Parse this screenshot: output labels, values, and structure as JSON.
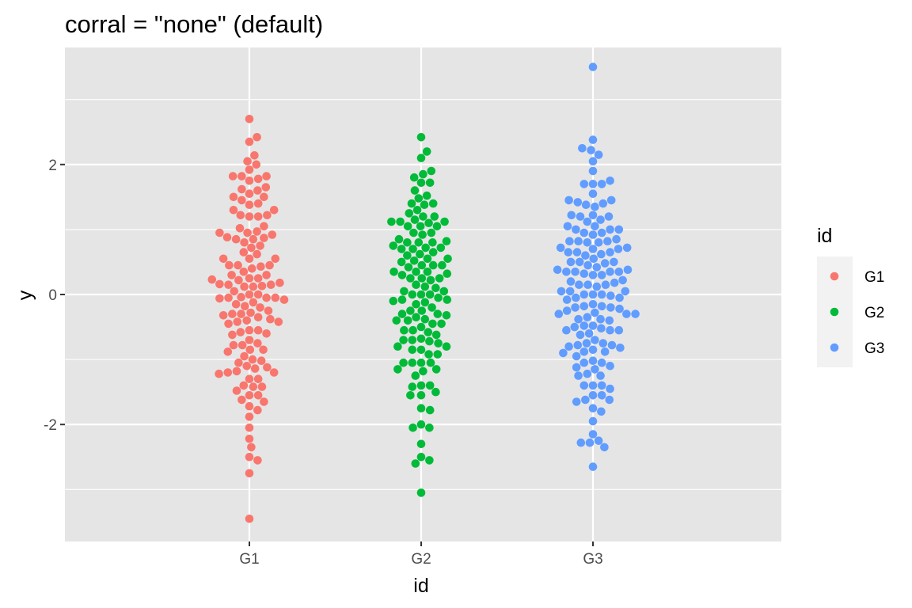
{
  "chart_data": {
    "type": "scatter",
    "subtype": "beeswarm",
    "title": "corral = \"none\" (default)",
    "xlabel": "id",
    "ylabel": "y",
    "categories": [
      "G1",
      "G2",
      "G3"
    ],
    "ylim": [
      -3.8,
      3.8
    ],
    "y_ticks": [
      -2,
      0,
      2
    ],
    "y_tick_labels": [
      "-2",
      "0",
      "2"
    ],
    "grid": true,
    "panel_background": "#e5e5e5",
    "legend": {
      "title": "id",
      "position": "right",
      "entries": [
        "G1",
        "G2",
        "G3"
      ]
    },
    "colors": {
      "G1": "#f8766d",
      "G2": "#00ba38",
      "G3": "#619cff"
    },
    "series": [
      {
        "name": "G1",
        "values": [
          0.0,
          0.22,
          0.23,
          0.16,
          0.13,
          0.12,
          -0.05,
          -0.06,
          -0.04,
          -0.08,
          -0.15,
          -0.28,
          -0.4,
          0.05,
          0.97,
          0.92,
          0.87,
          0.45,
          0.43,
          0.3,
          -0.3,
          -0.35,
          -0.42,
          -0.78,
          -1.12,
          -1.14,
          1.22,
          1.5,
          1.4,
          0.95,
          0.72,
          0.55,
          0.35,
          0.18,
          -0.2,
          -0.45,
          -0.62,
          -0.85,
          -1.05,
          -1.22,
          -1.4,
          -1.62,
          1.82,
          1.78,
          1.62,
          1.45,
          1.22,
          0.88,
          0.62,
          0.4,
          0.15,
          -0.12,
          -0.32,
          -0.55,
          -0.78,
          -1.0,
          -1.2,
          -1.42,
          -1.72,
          2.14,
          1.92,
          1.65,
          1.38,
          1.02,
          0.75,
          0.45,
          0.12,
          -0.25,
          -0.6,
          -0.95,
          -1.3,
          -1.55,
          -1.78,
          -2.22,
          2.7,
          2.35,
          2.05,
          1.55,
          1.2,
          0.85,
          0.45,
          0.15,
          -0.18,
          -0.55,
          -0.85,
          -1.2,
          -1.55,
          -1.88,
          -2.05,
          -2.35,
          -2.55,
          -2.75,
          -3.45,
          2.42,
          2.0,
          1.75,
          1.3,
          0.95,
          0.65,
          0.25,
          -0.05,
          -0.42,
          -0.75,
          -1.1,
          -1.42,
          -1.65,
          -2.5,
          1.82,
          1.6,
          1.3,
          1.05,
          0.8,
          0.55,
          0.3,
          0.0,
          -0.3,
          -0.58,
          -0.88,
          -1.18,
          -1.48,
          1.82,
          1.5,
          1.2,
          0.85,
          0.55,
          0.25,
          -0.05,
          -0.38,
          -0.7,
          -1.02,
          -1.3
        ]
      },
      {
        "name": "G2",
        "values": [
          0.0,
          -0.08,
          -0.2,
          -0.38,
          -0.55,
          0.25,
          0.45,
          0.7,
          0.85,
          1.2,
          1.12,
          0.95,
          0.72,
          0.5,
          0.3,
          0.1,
          -0.12,
          -0.3,
          -0.5,
          -0.7,
          -0.85,
          -1.05,
          1.25,
          1.05,
          0.8,
          0.55,
          0.25,
          -0.05,
          -0.32,
          -0.62,
          -0.92,
          -1.15,
          -1.4,
          1.72,
          1.4,
          1.1,
          0.8,
          0.45,
          0.12,
          -0.25,
          -0.58,
          -0.92,
          -1.25,
          -1.55,
          2.2,
          1.9,
          1.6,
          1.3,
          0.95,
          0.6,
          0.25,
          -0.1,
          -0.45,
          -0.8,
          -1.15,
          -1.5,
          -1.78,
          -2.05,
          -2.6,
          2.42,
          2.1,
          1.85,
          1.52,
          1.15,
          0.8,
          0.42,
          0.05,
          -0.3,
          -0.68,
          -1.05,
          -1.42,
          -1.75,
          -2.05,
          -2.3,
          -2.55,
          -3.05,
          1.8,
          1.48,
          1.12,
          0.72,
          0.35,
          0.0,
          -0.4,
          -0.8,
          -1.18,
          -1.55,
          -2.0,
          -2.5,
          1.72,
          1.38,
          1.05,
          0.7,
          0.35,
          0.0,
          -0.35,
          -0.7,
          -1.05,
          -1.4,
          1.4,
          1.12,
          0.82,
          0.52,
          0.22,
          -0.08,
          -0.4,
          -0.72,
          -1.05,
          1.2,
          0.92,
          0.62,
          0.32,
          0.05,
          -0.25,
          -0.55,
          -0.85,
          1.05,
          0.75,
          0.45,
          0.15,
          -0.15,
          -0.45,
          -0.75,
          0.65,
          0.35,
          0.55
        ]
      },
      {
        "name": "G3",
        "values": [
          0.0,
          0.35,
          0.22,
          -0.02,
          -0.2,
          -0.38,
          0.35,
          0.5,
          0.65,
          0.82,
          1.0,
          0.8,
          0.6,
          0.38,
          0.15,
          -0.08,
          -0.3,
          -0.52,
          -0.75,
          -0.88,
          1.2,
          0.95,
          0.7,
          0.45,
          0.2,
          -0.05,
          -0.3,
          -0.55,
          -0.8,
          -1.05,
          1.45,
          1.2,
          0.95,
          0.65,
          0.35,
          0.05,
          -0.25,
          -0.55,
          -0.85,
          -1.15,
          -1.4,
          -1.62,
          1.7,
          1.42,
          1.12,
          0.8,
          0.48,
          0.15,
          -0.18,
          -0.5,
          -0.82,
          -1.12,
          -1.4,
          -1.62,
          -2.28,
          2.25,
          1.9,
          1.55,
          1.22,
          0.85,
          0.5,
          0.15,
          -0.2,
          -0.55,
          -0.9,
          -1.25,
          -1.55,
          -1.8,
          -2.25,
          3.5,
          2.22,
          2.05,
          1.7,
          1.35,
          1.0,
          0.65,
          0.3,
          -0.05,
          -0.4,
          -0.75,
          -1.1,
          -1.45,
          -1.75,
          -1.95,
          -2.15,
          -2.35,
          -2.65,
          2.38,
          2.15,
          1.75,
          1.4,
          1.05,
          0.7,
          0.35,
          0.0,
          -0.35,
          -0.7,
          -1.05,
          -1.4,
          -1.65,
          -2.28,
          1.7,
          1.38,
          1.05,
          0.72,
          0.38,
          0.05,
          -0.28,
          -0.62,
          -0.95,
          -1.25,
          -1.55,
          1.45,
          1.15,
          0.82,
          0.5,
          0.18,
          -0.15,
          -0.48,
          -0.78,
          -1.02,
          -1.22,
          1.22,
          0.92,
          0.62,
          0.32,
          0.0,
          -0.3,
          -0.6,
          -0.88,
          1.0,
          0.72,
          0.42,
          0.12,
          -0.18,
          -0.48,
          -0.78,
          0.82,
          0.55,
          0.3,
          0.05,
          -0.22,
          -0.38
        ]
      }
    ]
  }
}
